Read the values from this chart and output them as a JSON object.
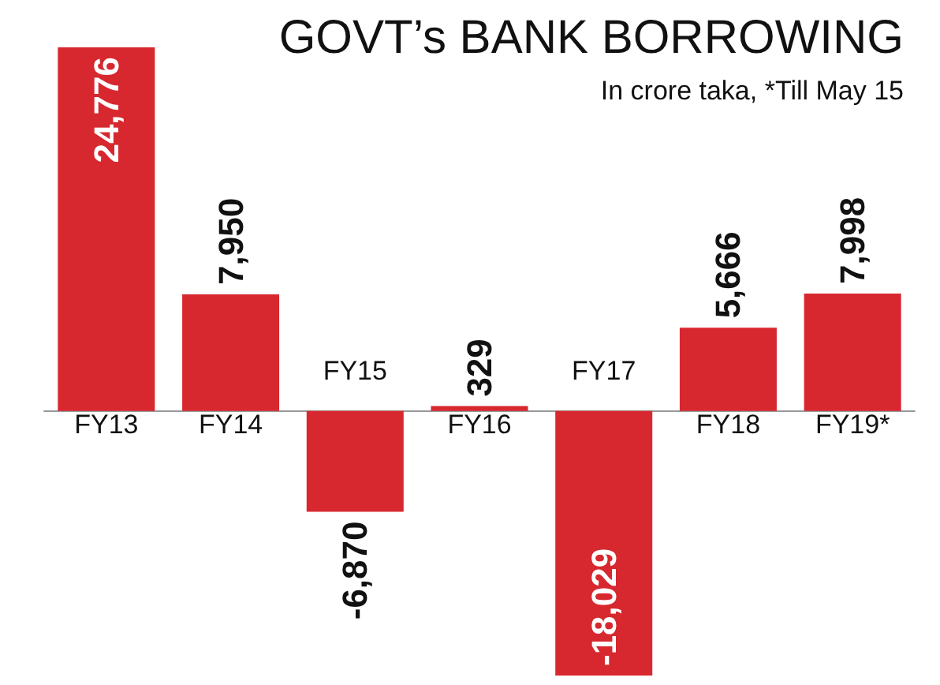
{
  "chart_data": {
    "type": "bar",
    "title": "GOVT’s BANK BORROWING",
    "subtitle": "In crore taka, *Till May 15",
    "categories": [
      "FY13",
      "FY14",
      "FY15",
      "FY16",
      "FY17",
      "FY18",
      "FY19*"
    ],
    "values": [
      24776,
      7950,
      -6870,
      329,
      -18029,
      5666,
      7998
    ],
    "value_labels": [
      "24,776",
      "7,950",
      "-6,870",
      "329",
      "-18,029",
      "5,666",
      "7,998"
    ],
    "color": "#d7282f"
  }
}
